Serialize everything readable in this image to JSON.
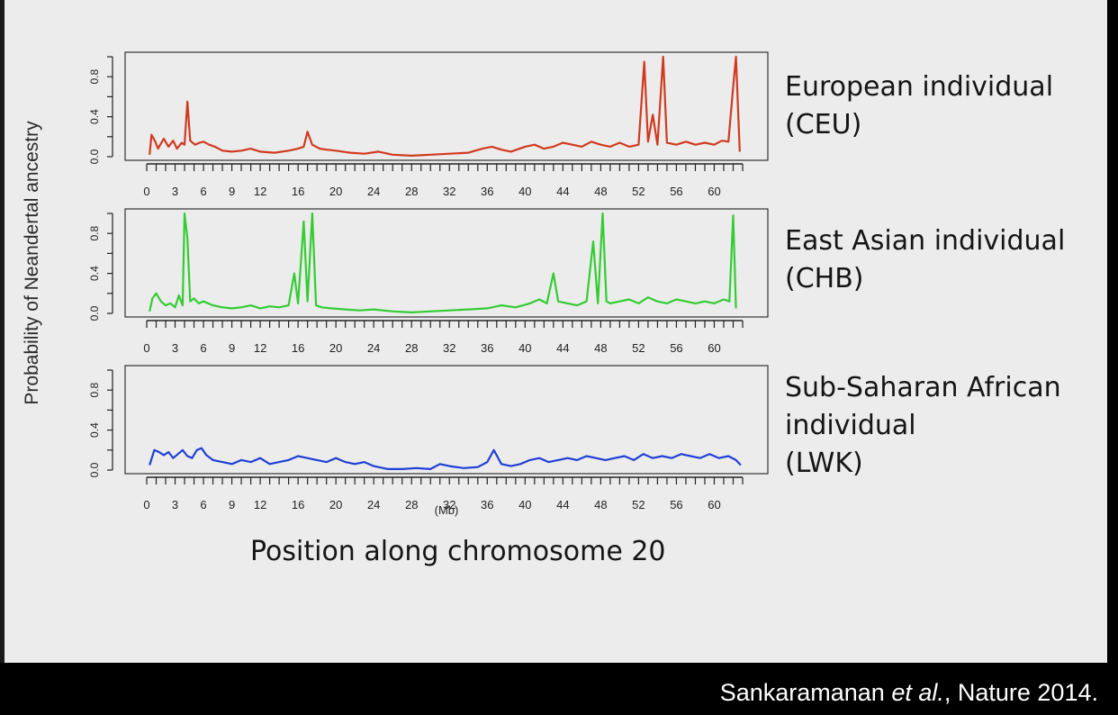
{
  "axis": {
    "ylabel": "Probability of Neandertal ancestry",
    "xlabel": "Position along chromosome 20",
    "x_unit_label": "(Mb)"
  },
  "citation": {
    "prefix": "Sankaramanan ",
    "italic": "et al.",
    "suffix": ", Nature 2014."
  },
  "chart_data": [
    {
      "type": "line",
      "title": "European individual\n(CEU)",
      "color": "#d03a1f",
      "xlim": [
        0,
        63
      ],
      "ylim": [
        0,
        1
      ],
      "xticks": [
        0,
        3,
        6,
        9,
        12,
        16,
        20,
        24,
        28,
        32,
        36,
        40,
        44,
        48,
        52,
        56,
        60
      ],
      "yticks": [
        0.0,
        0.4,
        0.8
      ],
      "x": [
        0.3,
        0.5,
        0.9,
        1.2,
        1.8,
        2.3,
        2.8,
        3.2,
        3.7,
        4.0,
        4.3,
        4.6,
        5.1,
        5.6,
        6.0,
        6.6,
        7.2,
        8.0,
        9.0,
        10.0,
        11.0,
        12.0,
        13.5,
        15.0,
        16.0,
        16.6,
        17.0,
        17.5,
        18.3,
        19.0,
        20.0,
        21.5,
        23.0,
        24.5,
        26.0,
        28.0,
        30.0,
        32.0,
        34.0,
        35.5,
        36.5,
        37.5,
        38.5,
        40.0,
        41.0,
        42.0,
        43.0,
        44.0,
        45.0,
        46.0,
        47.0,
        48.0,
        49.0,
        50.0,
        51.0,
        52.0,
        52.6,
        53.0,
        53.5,
        54.0,
        54.6,
        55.0,
        56.0,
        57.0,
        58.0,
        59.0,
        60.0,
        60.8,
        61.5,
        62.0,
        62.3,
        62.7
      ],
      "y": [
        0.02,
        0.22,
        0.15,
        0.08,
        0.18,
        0.1,
        0.16,
        0.08,
        0.14,
        0.12,
        0.55,
        0.16,
        0.12,
        0.14,
        0.15,
        0.12,
        0.1,
        0.06,
        0.05,
        0.06,
        0.08,
        0.05,
        0.04,
        0.06,
        0.08,
        0.1,
        0.25,
        0.12,
        0.08,
        0.07,
        0.06,
        0.04,
        0.03,
        0.05,
        0.02,
        0.01,
        0.02,
        0.03,
        0.04,
        0.08,
        0.1,
        0.07,
        0.05,
        0.1,
        0.12,
        0.08,
        0.1,
        0.14,
        0.12,
        0.1,
        0.15,
        0.12,
        0.1,
        0.14,
        0.1,
        0.12,
        0.95,
        0.15,
        0.42,
        0.12,
        1.0,
        0.14,
        0.12,
        0.15,
        0.12,
        0.14,
        0.12,
        0.16,
        0.15,
        0.7,
        1.0,
        0.05
      ]
    },
    {
      "type": "line",
      "title": "East Asian individual\n(CHB)",
      "color": "#33cc33",
      "xlim": [
        0,
        63
      ],
      "ylim": [
        0,
        1
      ],
      "xticks": [
        0,
        3,
        6,
        9,
        12,
        16,
        20,
        24,
        28,
        32,
        36,
        40,
        44,
        48,
        52,
        56,
        60
      ],
      "yticks": [
        0.0,
        0.4,
        0.8
      ],
      "x": [
        0.3,
        0.6,
        1.0,
        1.5,
        2.0,
        2.5,
        3.0,
        3.4,
        3.8,
        4.0,
        4.3,
        4.6,
        5.0,
        5.5,
        6.0,
        7.0,
        8.0,
        9.0,
        10.0,
        11.0,
        12.0,
        13.0,
        14.0,
        15.0,
        15.6,
        16.0,
        16.6,
        17.0,
        17.5,
        17.9,
        18.5,
        19.5,
        21.0,
        22.5,
        24.0,
        26.0,
        28.0,
        30.0,
        32.0,
        34.0,
        36.0,
        37.5,
        39.0,
        40.5,
        41.5,
        42.3,
        43.0,
        43.5,
        44.5,
        45.5,
        46.5,
        47.2,
        47.7,
        48.2,
        48.6,
        49.0,
        50.0,
        51.0,
        52.0,
        53.0,
        54.0,
        55.0,
        56.0,
        57.0,
        58.0,
        59.0,
        60.0,
        61.0,
        61.6,
        62.0,
        62.3
      ],
      "y": [
        0.02,
        0.15,
        0.2,
        0.12,
        0.08,
        0.1,
        0.06,
        0.18,
        0.08,
        1.0,
        0.75,
        0.12,
        0.15,
        0.1,
        0.12,
        0.08,
        0.06,
        0.05,
        0.06,
        0.08,
        0.05,
        0.07,
        0.06,
        0.08,
        0.4,
        0.1,
        0.92,
        0.12,
        1.0,
        0.08,
        0.06,
        0.05,
        0.04,
        0.03,
        0.04,
        0.02,
        0.01,
        0.02,
        0.03,
        0.04,
        0.05,
        0.08,
        0.06,
        0.1,
        0.14,
        0.1,
        0.4,
        0.12,
        0.1,
        0.08,
        0.12,
        0.72,
        0.1,
        1.0,
        0.12,
        0.1,
        0.12,
        0.14,
        0.1,
        0.16,
        0.12,
        0.1,
        0.14,
        0.12,
        0.1,
        0.12,
        0.1,
        0.14,
        0.12,
        0.98,
        0.05
      ]
    },
    {
      "type": "line",
      "title": "Sub-Saharan African\nindividual\n(LWK)",
      "color": "#1f3fd6",
      "xlim": [
        0,
        63
      ],
      "ylim": [
        0,
        1
      ],
      "xticks": [
        0,
        3,
        6,
        9,
        12,
        16,
        20,
        24,
        28,
        32,
        36,
        40,
        44,
        48,
        52,
        56,
        60
      ],
      "yticks": [
        0.0,
        0.4,
        0.8
      ],
      "x": [
        0.3,
        0.8,
        1.3,
        1.8,
        2.3,
        2.8,
        3.3,
        3.8,
        4.3,
        4.8,
        5.3,
        5.8,
        6.3,
        7.0,
        8.0,
        9.0,
        10.0,
        11.0,
        12.0,
        13.0,
        14.0,
        15.0,
        16.0,
        17.0,
        18.0,
        19.0,
        20.0,
        21.0,
        22.0,
        23.0,
        24.0,
        25.5,
        27.0,
        28.5,
        30.0,
        31.0,
        32.0,
        33.5,
        35.0,
        36.0,
        36.7,
        37.5,
        38.5,
        39.5,
        40.5,
        41.5,
        42.5,
        43.5,
        44.5,
        45.5,
        46.5,
        47.5,
        48.5,
        49.5,
        50.5,
        51.5,
        52.5,
        53.5,
        54.5,
        55.5,
        56.5,
        57.5,
        58.5,
        59.5,
        60.5,
        61.5,
        62.3,
        62.8
      ],
      "y": [
        0.05,
        0.2,
        0.18,
        0.15,
        0.18,
        0.12,
        0.16,
        0.2,
        0.14,
        0.12,
        0.2,
        0.22,
        0.15,
        0.1,
        0.08,
        0.06,
        0.1,
        0.08,
        0.12,
        0.06,
        0.08,
        0.1,
        0.14,
        0.12,
        0.1,
        0.08,
        0.12,
        0.08,
        0.06,
        0.08,
        0.04,
        0.01,
        0.01,
        0.02,
        0.01,
        0.06,
        0.04,
        0.02,
        0.03,
        0.08,
        0.2,
        0.06,
        0.04,
        0.06,
        0.1,
        0.12,
        0.08,
        0.1,
        0.12,
        0.1,
        0.14,
        0.12,
        0.1,
        0.12,
        0.14,
        0.1,
        0.16,
        0.12,
        0.14,
        0.12,
        0.16,
        0.14,
        0.12,
        0.16,
        0.12,
        0.14,
        0.1,
        0.05
      ]
    }
  ]
}
